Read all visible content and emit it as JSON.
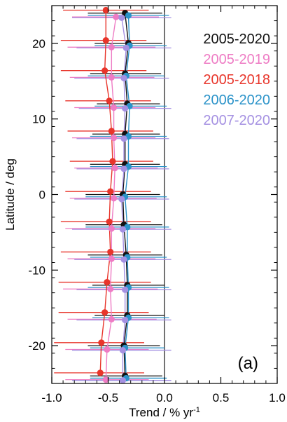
{
  "chart_data": {
    "type": "scatter",
    "panel_label": "(a)",
    "xlabel_main": "Trend / % yr",
    "xlabel_sup": "-1",
    "ylabel": "Latitude / deg",
    "xlim": [
      -1.0,
      1.0
    ],
    "ylim": [
      -25,
      25
    ],
    "x_ticks": [
      {
        "value": -1.0,
        "label": "-1.0"
      },
      {
        "value": -0.5,
        "label": "-0.5"
      },
      {
        "value": 0.0,
        "label": "0.0"
      },
      {
        "value": 0.5,
        "label": "0.5"
      },
      {
        "value": 1.0,
        "label": "1.0"
      }
    ],
    "y_ticks": [
      {
        "value": -20,
        "label": "-20"
      },
      {
        "value": -10,
        "label": "-10"
      },
      {
        "value": 0,
        "label": "0"
      },
      {
        "value": 10,
        "label": "10"
      },
      {
        "value": 20,
        "label": "20"
      }
    ],
    "zero_line_x": 0.0,
    "latitudes": [
      24,
      20,
      16,
      12,
      8,
      4,
      0,
      -4,
      -8,
      -12,
      -16,
      -20,
      -24
    ],
    "series": [
      {
        "name": "2005-2020",
        "color": "#111111",
        "y_offset": 0.0,
        "trend": [
          -0.35,
          -0.32,
          -0.35,
          -0.33,
          -0.35,
          -0.35,
          -0.37,
          -0.36,
          -0.34,
          -0.33,
          -0.33,
          -0.36,
          -0.35
        ],
        "err_low": [
          -0.68,
          -0.62,
          -0.66,
          -0.6,
          -0.64,
          -0.66,
          -0.7,
          -0.7,
          -0.68,
          -0.64,
          -0.62,
          -0.68,
          -0.66
        ],
        "err_high": [
          -0.02,
          -0.02,
          -0.03,
          -0.04,
          -0.04,
          -0.04,
          -0.04,
          -0.02,
          -0.02,
          0.0,
          0.0,
          -0.04,
          -0.02
        ]
      },
      {
        "name": "2005-2019",
        "color": "#ee7cc4",
        "y_offset": -0.5,
        "trend": [
          -0.43,
          -0.47,
          -0.47,
          -0.45,
          -0.45,
          -0.44,
          -0.45,
          -0.47,
          -0.47,
          -0.48,
          -0.47,
          -0.51,
          -0.52
        ],
        "err_low": [
          -0.82,
          -0.86,
          -0.84,
          -0.8,
          -0.82,
          -0.8,
          -0.84,
          -0.88,
          -0.86,
          -0.9,
          -0.86,
          -0.88,
          -0.88
        ],
        "err_high": [
          -0.05,
          -0.08,
          -0.09,
          -0.08,
          -0.08,
          -0.06,
          -0.07,
          -0.08,
          -0.08,
          -0.06,
          -0.07,
          -0.14,
          -0.14
        ]
      },
      {
        "name": "2005-2018",
        "color": "#e8352b",
        "y_offset": 0.4,
        "trend": [
          -0.52,
          -0.52,
          -0.53,
          -0.49,
          -0.47,
          -0.46,
          -0.48,
          -0.49,
          -0.48,
          -0.51,
          -0.53,
          -0.56,
          -0.57
        ],
        "err_low": [
          -0.9,
          -0.92,
          -0.92,
          -0.88,
          -0.86,
          -0.84,
          -0.88,
          -0.92,
          -0.92,
          -0.94,
          -0.94,
          -0.98,
          -0.98
        ],
        "err_high": [
          -0.14,
          -0.16,
          -0.16,
          -0.12,
          -0.1,
          -0.1,
          -0.12,
          -0.12,
          -0.12,
          -0.12,
          -0.14,
          -0.18,
          -0.18
        ]
      },
      {
        "name": "2006-2020",
        "color": "#2b93c9",
        "y_offset": -0.3,
        "trend": [
          -0.32,
          -0.31,
          -0.34,
          -0.31,
          -0.32,
          -0.32,
          -0.35,
          -0.33,
          -0.33,
          -0.32,
          -0.32,
          -0.35,
          -0.34
        ],
        "err_low": [
          -0.68,
          -0.62,
          -0.68,
          -0.62,
          -0.66,
          -0.66,
          -0.7,
          -0.7,
          -0.66,
          -0.68,
          -0.64,
          -0.66,
          -0.66
        ],
        "err_high": [
          0.04,
          0.02,
          0.0,
          0.02,
          0.02,
          0.02,
          0.02,
          0.04,
          0.02,
          0.04,
          0.04,
          0.0,
          0.02
        ]
      },
      {
        "name": "2007-2020",
        "color": "#a591e2",
        "y_offset": -0.6,
        "trend": [
          -0.38,
          -0.34,
          -0.36,
          -0.35,
          -0.36,
          -0.36,
          -0.38,
          -0.37,
          -0.36,
          -0.35,
          -0.35,
          -0.37,
          -0.37
        ],
        "err_low": [
          -0.82,
          -0.78,
          -0.8,
          -0.76,
          -0.78,
          -0.78,
          -0.8,
          -0.82,
          -0.8,
          -0.78,
          -0.78,
          -0.82,
          -0.82
        ],
        "err_high": [
          0.06,
          0.06,
          0.04,
          0.06,
          0.04,
          0.04,
          0.04,
          0.06,
          0.06,
          0.06,
          0.06,
          0.06,
          0.06
        ]
      }
    ],
    "legend_placement": "top-right"
  }
}
